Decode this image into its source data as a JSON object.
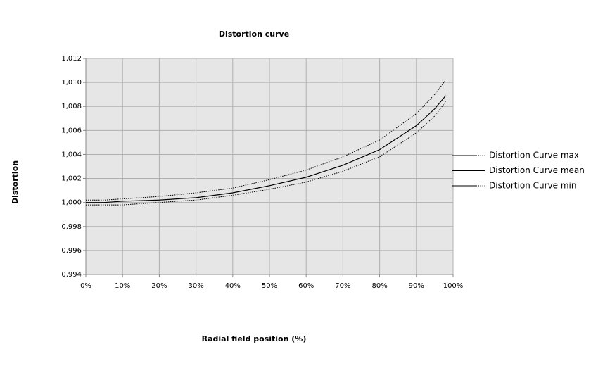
{
  "chart_data": {
    "type": "line",
    "title": "Distortion curve",
    "x_label": "Radial field position (%)",
    "y_label": "Distortion",
    "x": [
      0,
      5,
      10,
      20,
      30,
      40,
      50,
      60,
      70,
      80,
      90,
      95,
      98
    ],
    "series": [
      {
        "name": "Distortion Curve max",
        "color": "#000000",
        "line_style": "dotted",
        "values": [
          1.0002,
          1.0002,
          1.0003,
          1.0005,
          1.0008,
          1.0012,
          1.0019,
          1.0027,
          1.0038,
          1.0052,
          1.0074,
          1.009,
          1.0102
        ]
      },
      {
        "name": "Distortion Curve mean",
        "color": "#000000",
        "line_style": "solid",
        "values": [
          1.0,
          1.0,
          1.0001,
          1.0002,
          1.0004,
          1.0008,
          1.0014,
          1.0021,
          1.0031,
          1.0044,
          1.0064,
          1.0078,
          1.0089
        ]
      },
      {
        "name": "Distortion Curve min",
        "color": "#000000",
        "line_style": "dotted",
        "values": [
          0.9998,
          0.9998,
          0.9998,
          1.0,
          1.0002,
          1.0006,
          1.0011,
          1.0017,
          1.0026,
          1.0038,
          1.0058,
          1.0072,
          1.0084
        ]
      }
    ],
    "xlim": [
      0,
      100
    ],
    "xticks": [
      {
        "value": 0,
        "label": "0%"
      },
      {
        "value": 10,
        "label": "10%"
      },
      {
        "value": 20,
        "label": "20%"
      },
      {
        "value": 30,
        "label": "30%"
      },
      {
        "value": 40,
        "label": "40%"
      },
      {
        "value": 50,
        "label": "50%"
      },
      {
        "value": 60,
        "label": "60%"
      },
      {
        "value": 70,
        "label": "70%"
      },
      {
        "value": 80,
        "label": "80%"
      },
      {
        "value": 90,
        "label": "90%"
      },
      {
        "value": 100,
        "label": "100%"
      }
    ],
    "ylim": [
      0.994,
      1.012
    ],
    "yticks": [
      {
        "value": 0.994,
        "label": "0,994"
      },
      {
        "value": 0.996,
        "label": "0,996"
      },
      {
        "value": 0.998,
        "label": "0,998"
      },
      {
        "value": 1.0,
        "label": "1,000"
      },
      {
        "value": 1.002,
        "label": "1,002"
      },
      {
        "value": 1.004,
        "label": "1,004"
      },
      {
        "value": 1.006,
        "label": "1,006"
      },
      {
        "value": 1.008,
        "label": "1,008"
      },
      {
        "value": 1.01,
        "label": "1,010"
      },
      {
        "value": 1.012,
        "label": "1,012"
      }
    ],
    "grid": true,
    "legend": "right"
  }
}
